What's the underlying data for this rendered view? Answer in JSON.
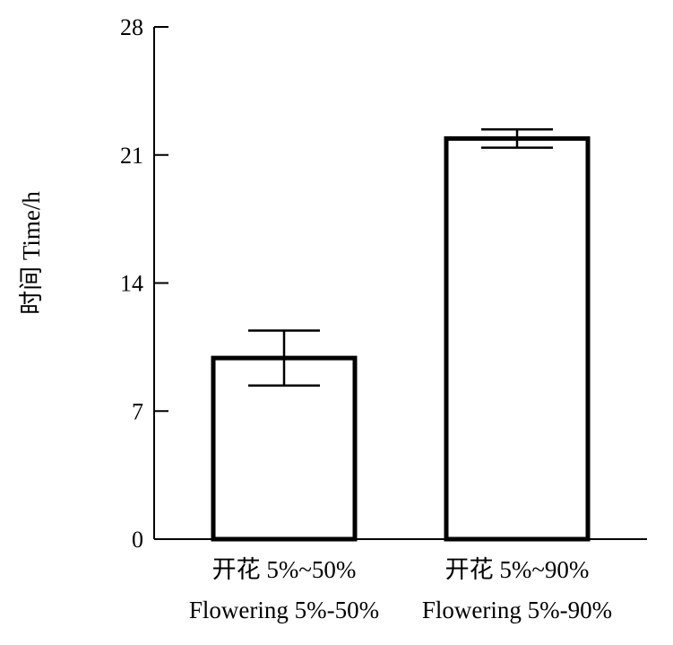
{
  "chart_data": {
    "type": "bar",
    "title": "",
    "xlabel": "",
    "ylabel": "时间 Time/h",
    "ylim": [
      0,
      28
    ],
    "yticks": [
      0,
      7,
      14,
      21,
      28
    ],
    "grid": false,
    "categories": [
      [
        "开花 5%~50%",
        "Flowering 5%-50%"
      ],
      [
        "开花 5%~90%",
        "Flowering 5%-90%"
      ]
    ],
    "values": [
      9.9,
      21.9
    ],
    "error": [
      1.5,
      0.5
    ],
    "colors": {
      "bar_fill": "#ffffff",
      "bar_stroke": "#000000",
      "axis": "#000000"
    }
  }
}
